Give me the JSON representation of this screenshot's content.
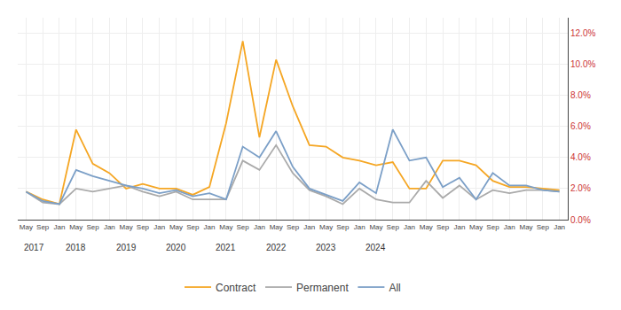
{
  "chart_data": {
    "type": "line",
    "categories": [
      "May",
      "Sep",
      "Jan",
      "May",
      "Sep",
      "Jan",
      "May",
      "Sep",
      "Jan",
      "May",
      "Sep",
      "Jan",
      "May",
      "Sep",
      "Jan",
      "May",
      "Sep",
      "Jan",
      "May",
      "Sep",
      "Jan",
      "May",
      "Sep",
      "Jan",
      "May",
      "Sep",
      "Jan",
      "May",
      "Sep",
      "Jan",
      "May",
      "Sep",
      "Jan"
    ],
    "series": [
      {
        "name": "Contract",
        "color": "#f5a623",
        "values": [
          0.018,
          0.013,
          0.01,
          0.058,
          0.036,
          0.03,
          0.02,
          0.023,
          0.02,
          0.02,
          0.016,
          0.021,
          0.062,
          0.115,
          0.053,
          0.103,
          0.073,
          0.048,
          0.047,
          0.04,
          0.038,
          0.035,
          0.037,
          0.02,
          0.02,
          0.038,
          0.038,
          0.035,
          0.025,
          0.021,
          0.021,
          0.02,
          0.019
        ]
      },
      {
        "name": "Permanent",
        "color": "#aaaaaa",
        "values": [
          0.018,
          0.011,
          0.01,
          0.02,
          0.018,
          0.02,
          0.022,
          0.018,
          0.015,
          0.018,
          0.013,
          0.013,
          0.013,
          0.038,
          0.032,
          0.048,
          0.03,
          0.019,
          0.015,
          0.01,
          0.02,
          0.013,
          0.011,
          0.011,
          0.025,
          0.014,
          0.022,
          0.013,
          0.019,
          0.017,
          0.019,
          0.019,
          0.018
        ]
      },
      {
        "name": "All",
        "color": "#7b9fc7",
        "values": [
          0.018,
          0.012,
          0.01,
          0.032,
          0.028,
          0.025,
          0.022,
          0.02,
          0.017,
          0.019,
          0.015,
          0.017,
          0.013,
          0.047,
          0.04,
          0.057,
          0.034,
          0.02,
          0.016,
          0.012,
          0.024,
          0.017,
          0.058,
          0.038,
          0.04,
          0.021,
          0.027,
          0.013,
          0.03,
          0.022,
          0.022,
          0.019,
          0.018
        ]
      }
    ],
    "ylim": [
      0.0,
      0.13
    ],
    "yticks": [
      {
        "value": 0.0,
        "label": "0.0%"
      },
      {
        "value": 0.02,
        "label": "2.0%"
      },
      {
        "value": 0.04,
        "label": "4.0%"
      },
      {
        "value": 0.06,
        "label": "6.0%"
      },
      {
        "value": 0.08,
        "label": "8.0%"
      },
      {
        "value": 0.1,
        "label": "10.0%"
      },
      {
        "value": 0.12,
        "label": "12.0%"
      }
    ],
    "annotations": [
      "2017",
      "2018",
      "2019",
      "2020",
      "2021",
      "2022",
      "2023",
      "2024"
    ],
    "grid": true,
    "legend": "bottom"
  }
}
